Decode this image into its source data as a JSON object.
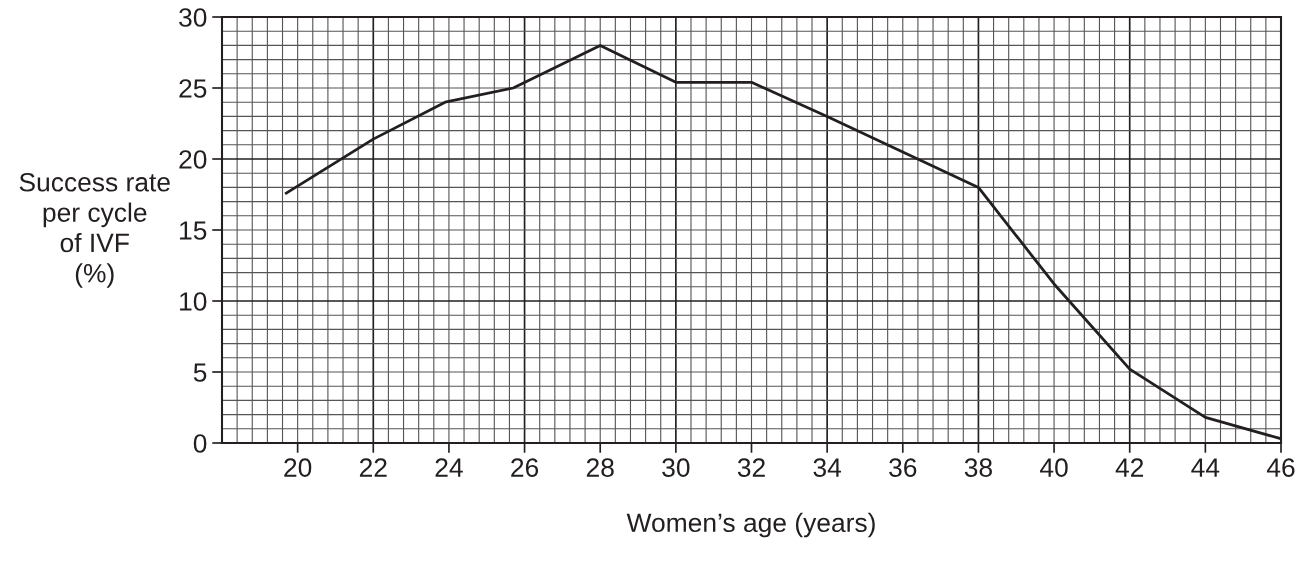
{
  "chart_data": {
    "type": "line",
    "xlabel": "Women’s age (years)",
    "ylabel": "Success rate\nper cycle\nof IVF\n(%)",
    "series": [
      {
        "color": "#231f20",
        "x": [
          19.7,
          22,
          23.9,
          25.7,
          28,
          30,
          32,
          34,
          38,
          40,
          42,
          44,
          46
        ],
        "values": [
          17.6,
          21.4,
          24,
          25,
          28,
          25.4,
          25.4,
          23,
          18,
          11.2,
          5.2,
          1.8,
          0.3
        ]
      }
    ],
    "xlim": [
      18,
      46
    ],
    "xticks": [
      20,
      22,
      24,
      26,
      28,
      30,
      32,
      34,
      36,
      38,
      40,
      42,
      44,
      46
    ],
    "ylim": [
      0,
      30
    ],
    "yticks": [
      0,
      5,
      10,
      15,
      20,
      25,
      30
    ],
    "grid": true,
    "marker": "none",
    "line_style": "solid"
  }
}
